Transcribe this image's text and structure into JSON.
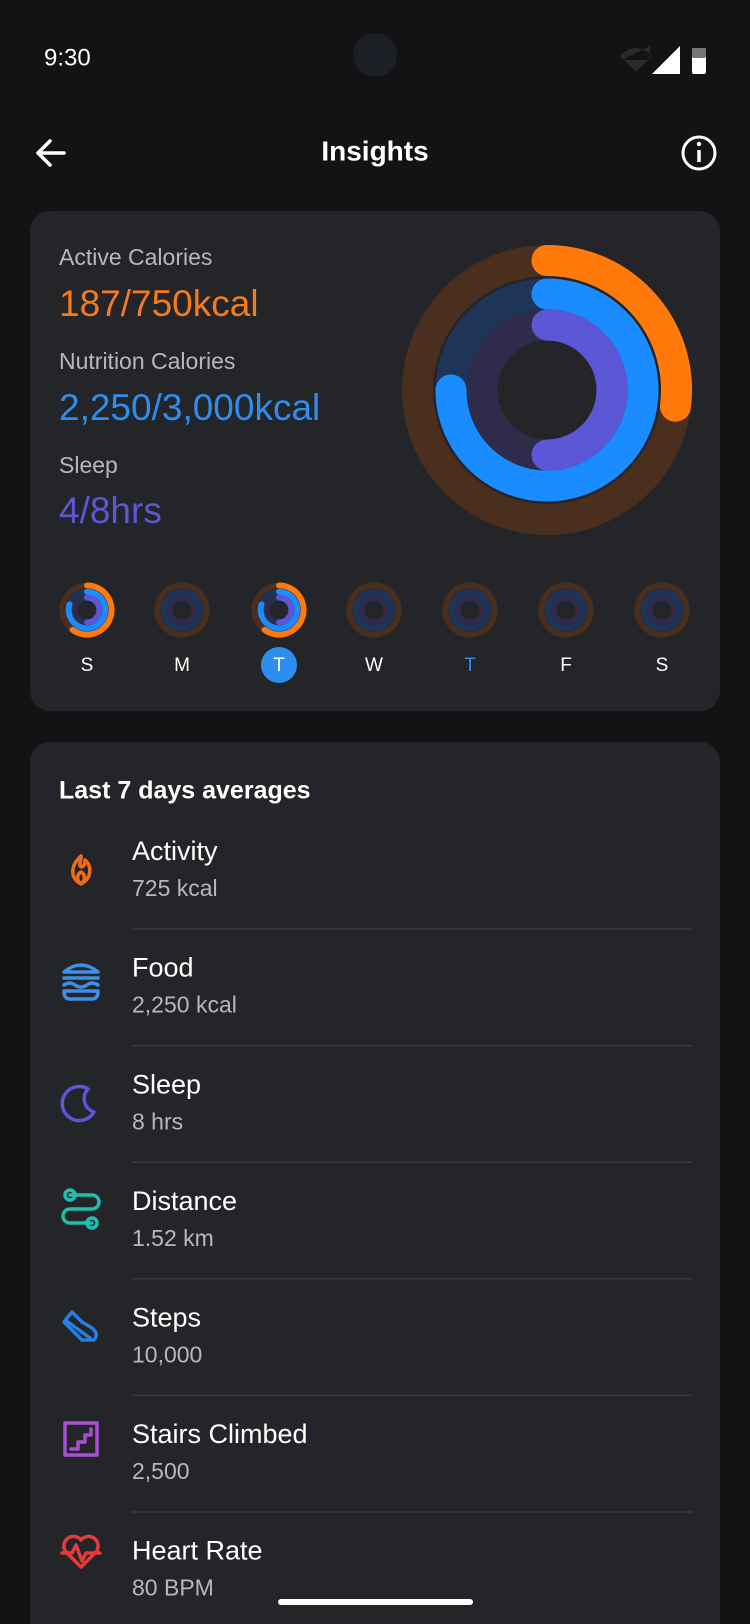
{
  "status_bar": {
    "time": "9:30"
  },
  "header": {
    "title": "Insights"
  },
  "summary": {
    "metrics": [
      {
        "label": "Active Calories",
        "value": "187/750kcal"
      },
      {
        "label": "Nutrition Calories",
        "value": "2,250/3,000kcal"
      },
      {
        "label": "Sleep",
        "value": "4/8hrs"
      }
    ],
    "days": [
      "S",
      "M",
      "T",
      "W",
      "T",
      "F",
      "S"
    ]
  },
  "averages": {
    "title": "Last 7 days averages",
    "items": [
      {
        "label": "Activity",
        "value": "725 kcal"
      },
      {
        "label": "Food",
        "value": "2,250 kcal"
      },
      {
        "label": "Sleep",
        "value": "8 hrs"
      },
      {
        "label": "Distance",
        "value": "1.52 km"
      },
      {
        "label": "Steps",
        "value": "10,000"
      },
      {
        "label": "Stairs Climbed",
        "value": "2,500"
      },
      {
        "label": "Heart Rate",
        "value": "80 BPM"
      }
    ]
  }
}
